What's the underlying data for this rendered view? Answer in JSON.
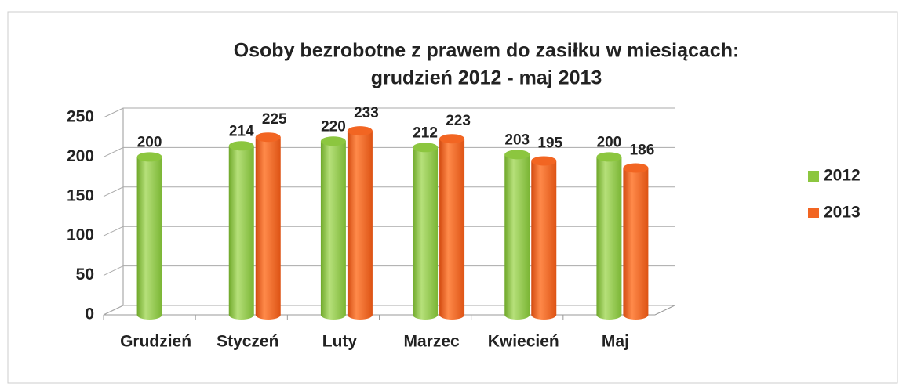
{
  "chart_data": {
    "type": "bar3d",
    "title": [
      "Osoby bezrobotne z prawem do zasiłku w miesiącach:",
      "grudzień 2012 - maj 2013"
    ],
    "categories": [
      "Grudzień",
      "Styczeń",
      "Luty",
      "Marzec",
      "Kwiecień",
      "Maj"
    ],
    "series": [
      {
        "name": "2012",
        "color": "#8cc63f",
        "values": [
          200,
          214,
          220,
          212,
          203,
          200
        ]
      },
      {
        "name": "2013",
        "color": "#f26522",
        "values": [
          null,
          225,
          233,
          223,
          195,
          186
        ]
      }
    ],
    "ylim": [
      0,
      250
    ],
    "yticks": [
      0,
      50,
      100,
      150,
      200,
      250
    ],
    "grid": true,
    "legend": "right"
  }
}
